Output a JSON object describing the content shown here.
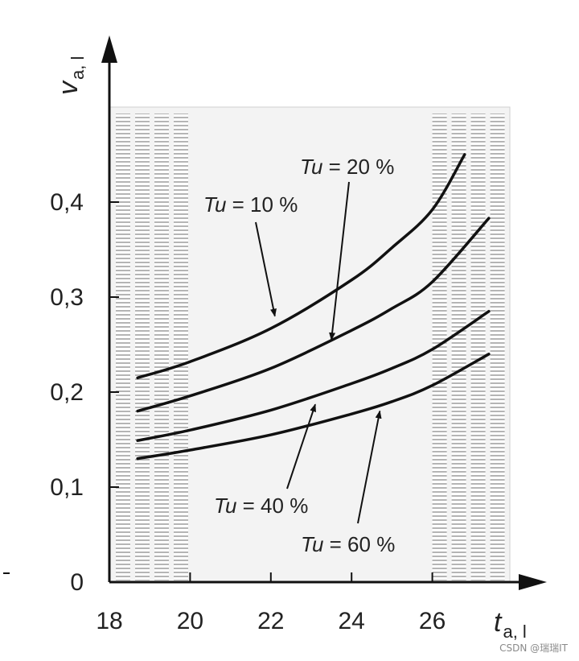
{
  "chart_data": {
    "type": "line",
    "x_axis": {
      "label_main": "t",
      "label_sub": "a, l",
      "range": [
        18,
        28
      ],
      "ticks": [
        18,
        20,
        22,
        24,
        26
      ]
    },
    "y_axis": {
      "label_main": "v",
      "label_sub": "a, l",
      "range": [
        0,
        0.5
      ],
      "ticks": [
        0,
        0.1,
        0.2,
        0.3,
        0.4
      ],
      "tick_labels": [
        "0",
        "0,1",
        "0,2",
        "0,3",
        "0,4"
      ]
    },
    "grid": false,
    "shaded_bands": [
      [
        18,
        20
      ],
      [
        26,
        28
      ]
    ],
    "series": [
      {
        "name": "Tu = 10 %",
        "points": [
          [
            18.7,
            0.215
          ],
          [
            20,
            0.232
          ],
          [
            22,
            0.267
          ],
          [
            24,
            0.318
          ],
          [
            25,
            0.352
          ],
          [
            26,
            0.392
          ],
          [
            26.8,
            0.45
          ]
        ]
      },
      {
        "name": "Tu = 20 %",
        "points": [
          [
            18.7,
            0.18
          ],
          [
            20,
            0.196
          ],
          [
            22,
            0.225
          ],
          [
            24,
            0.265
          ],
          [
            25,
            0.288
          ],
          [
            26,
            0.316
          ],
          [
            27.4,
            0.383
          ]
        ]
      },
      {
        "name": "Tu = 40 %",
        "points": [
          [
            18.7,
            0.149
          ],
          [
            20,
            0.16
          ],
          [
            22,
            0.181
          ],
          [
            24,
            0.209
          ],
          [
            25,
            0.225
          ],
          [
            26,
            0.245
          ],
          [
            27.4,
            0.285
          ]
        ]
      },
      {
        "name": "Tu = 60 %",
        "points": [
          [
            18.7,
            0.13
          ],
          [
            20,
            0.139
          ],
          [
            22,
            0.155
          ],
          [
            24,
            0.177
          ],
          [
            25,
            0.19
          ],
          [
            26,
            0.207
          ],
          [
            27.4,
            0.24
          ]
        ]
      }
    ],
    "annotations": [
      {
        "series": "Tu = 10 %",
        "label_var": "Tu",
        "label_rest": " = 10 %",
        "point": [
          22.1,
          0.28
        ]
      },
      {
        "series": "Tu = 20 %",
        "label_var": "Tu",
        "label_rest": " = 20 %",
        "point": [
          23.5,
          0.255
        ]
      },
      {
        "series": "Tu = 40 %",
        "label_var": "Tu",
        "label_rest": " = 40 %",
        "point": [
          23.1,
          0.187
        ]
      },
      {
        "series": "Tu = 60 %",
        "label_var": "Tu",
        "label_rest": " = 60 %",
        "point": [
          24.7,
          0.18
        ]
      }
    ]
  },
  "watermark": "CSDN @瑞瑞IT"
}
